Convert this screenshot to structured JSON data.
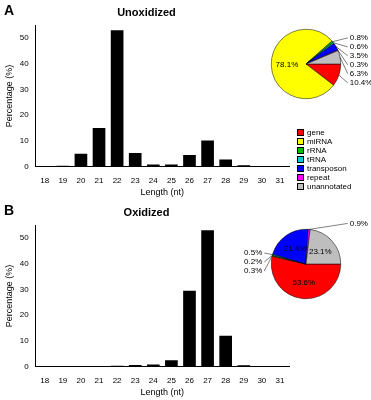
{
  "chart_data": [
    {
      "type": "bar",
      "panel": "A",
      "title": "Unoxidized",
      "x_label": "Length (nt)",
      "y_label": "Percentage (%)",
      "categories": [
        18,
        19,
        20,
        21,
        22,
        23,
        24,
        25,
        26,
        27,
        28,
        29,
        30,
        31
      ],
      "values": [
        0,
        0.3,
        5,
        15,
        53,
        5.3,
        0.8,
        0.8,
        4.5,
        10.2,
        2.8,
        0.5,
        0.1,
        0
      ],
      "color": "#000000",
      "ylim": [
        0,
        55
      ],
      "yticks": [
        0,
        10,
        20,
        30,
        40,
        50
      ],
      "grid": false
    },
    {
      "type": "pie",
      "categories": [
        "gene",
        "miRNA",
        "rRNA",
        "tRNA",
        "transposon",
        "repeat",
        "unannotated"
      ],
      "values": [
        10.4,
        78.1,
        0.8,
        0.6,
        3.5,
        0.3,
        6.3
      ],
      "value_labels": [
        "10.4%",
        "78.1%",
        "0.8%",
        "0.6%",
        "3.5%",
        "0.3%",
        "6.3%"
      ],
      "colors": [
        "#ff0000",
        "#ffff00",
        "#00c000",
        "#00ced1",
        "#0000ff",
        "#ff00ff",
        "#bebebe"
      ],
      "data_labels": true,
      "legend": "right"
    },
    {
      "type": "bar",
      "panel": "B",
      "title": "Oxidized",
      "x_label": "Length (nt)",
      "y_label": "Percentage (%)",
      "categories": [
        18,
        19,
        20,
        21,
        22,
        23,
        24,
        25,
        26,
        27,
        28,
        29,
        30,
        31
      ],
      "values": [
        0,
        0,
        0,
        0.2,
        0.3,
        0.6,
        0.8,
        2.5,
        29.5,
        53,
        12,
        0.5,
        0.1,
        0
      ],
      "color": "#000000",
      "ylim": [
        0,
        55
      ],
      "yticks": [
        0,
        10,
        20,
        30,
        40,
        50
      ],
      "grid": false
    },
    {
      "type": "pie",
      "categories": [
        "gene",
        "miRNA",
        "rRNA",
        "tRNA",
        "transposon",
        "repeat",
        "unannotated"
      ],
      "values": [
        53.6,
        0.3,
        0.2,
        0.5,
        21.4,
        0.9,
        23.1
      ],
      "value_labels": [
        "53.6%",
        "0.3%",
        "0.2%",
        "0.5%",
        "21.4%",
        "0.9%",
        "23.1%"
      ],
      "colors": [
        "#ff0000",
        "#ffff00",
        "#00c000",
        "#00ced1",
        "#0000ff",
        "#ff00ff",
        "#bebebe"
      ],
      "data_labels": true
    }
  ]
}
